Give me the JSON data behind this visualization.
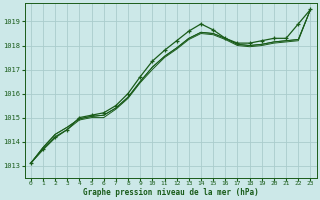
{
  "xlabel": "Graphe pression niveau de la mer (hPa)",
  "background_color": "#cce8e8",
  "grid_color": "#aacccc",
  "line_color": "#1a5c1a",
  "ylim": [
    1012.5,
    1019.75
  ],
  "xlim": [
    -0.5,
    23.5
  ],
  "yticks": [
    1013,
    1014,
    1015,
    1016,
    1017,
    1018,
    1019
  ],
  "xticks": [
    0,
    1,
    2,
    3,
    4,
    5,
    6,
    7,
    8,
    9,
    10,
    11,
    12,
    13,
    14,
    15,
    16,
    17,
    18,
    19,
    20,
    21,
    22,
    23
  ],
  "series_main": [
    1013.1,
    1013.7,
    1014.2,
    1014.5,
    1015.0,
    1015.1,
    1015.2,
    1015.5,
    1016.0,
    1016.7,
    1017.35,
    1017.8,
    1018.2,
    1018.6,
    1018.9,
    1018.65,
    1018.3,
    1018.1,
    1018.1,
    1018.2,
    1018.3,
    1018.3,
    1018.9,
    1019.5
  ],
  "series_line1": [
    1013.1,
    1013.75,
    1014.3,
    1014.6,
    1014.95,
    1015.05,
    1015.1,
    1015.4,
    1015.85,
    1016.5,
    1017.1,
    1017.55,
    1017.9,
    1018.3,
    1018.55,
    1018.5,
    1018.3,
    1018.05,
    1018.0,
    1018.05,
    1018.15,
    1018.2,
    1018.25,
    1019.5
  ],
  "series_line2": [
    1013.1,
    1013.75,
    1014.3,
    1014.6,
    1014.95,
    1015.05,
    1015.1,
    1015.4,
    1015.85,
    1016.5,
    1017.1,
    1017.55,
    1017.9,
    1018.3,
    1018.55,
    1018.5,
    1018.3,
    1018.05,
    1018.0,
    1018.05,
    1018.15,
    1018.2,
    1018.25,
    1019.5
  ],
  "series_line3": [
    1013.1,
    1013.65,
    1014.15,
    1014.5,
    1014.9,
    1015.0,
    1015.0,
    1015.35,
    1015.8,
    1016.45,
    1017.0,
    1017.5,
    1017.85,
    1018.25,
    1018.5,
    1018.45,
    1018.25,
    1018.0,
    1017.95,
    1018.0,
    1018.1,
    1018.15,
    1018.2,
    1019.5
  ]
}
